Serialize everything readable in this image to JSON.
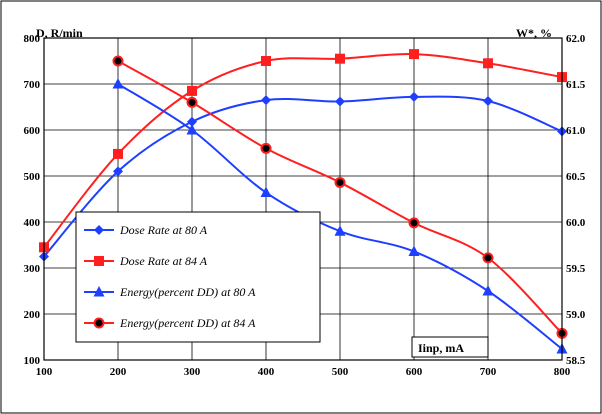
{
  "chart_data": {
    "type": "line",
    "title": "",
    "ylabel_left": "D, R/min",
    "ylabel_right": "W*, %",
    "xlabel": "Iinp, mA",
    "x_ticks": [
      100,
      200,
      300,
      400,
      500,
      600,
      700,
      800
    ],
    "xlim": [
      100,
      800
    ],
    "y_left_ticks": [
      100,
      200,
      300,
      400,
      500,
      600,
      700,
      800
    ],
    "ylim_left": [
      100,
      800
    ],
    "y_right_ticks": [
      "58.5",
      "59.0",
      "59.5",
      "60.0",
      "60.5",
      "61.0",
      "61.5",
      "62.0"
    ],
    "ylim_right": [
      58.5,
      62.0
    ],
    "grid": true,
    "legend_position": "lower-left",
    "series": [
      {
        "name": "Dose Rate at 80 A",
        "axis": "left",
        "color": "#1f3fff",
        "marker": "diamond",
        "x": [
          100,
          200,
          300,
          400,
          500,
          600,
          700,
          800
        ],
        "y": [
          325,
          510,
          618,
          665,
          662,
          672,
          663,
          597
        ]
      },
      {
        "name": "Dose Rate at 84 A",
        "axis": "left",
        "color": "#ff1f1f",
        "marker": "square",
        "x": [
          100,
          200,
          300,
          400,
          500,
          600,
          700,
          800
        ],
        "y": [
          345,
          548,
          685,
          750,
          755,
          765,
          745,
          715
        ]
      },
      {
        "name": "Energy(percent DD) at 80 A",
        "axis": "right",
        "color": "#1f3fff",
        "marker": "triangle",
        "x": [
          200,
          300,
          400,
          500,
          600,
          700,
          800
        ],
        "y": [
          61.5,
          61.0,
          60.32,
          59.9,
          59.68,
          59.25,
          58.62
        ]
      },
      {
        "name": "Energy(percent DD) at 84 A",
        "axis": "right",
        "color": "#ff1f1f",
        "marker": "circle",
        "x": [
          200,
          300,
          400,
          500,
          600,
          700,
          800
        ],
        "y": [
          61.75,
          61.3,
          60.8,
          60.43,
          59.99,
          59.61,
          58.79
        ]
      }
    ]
  }
}
